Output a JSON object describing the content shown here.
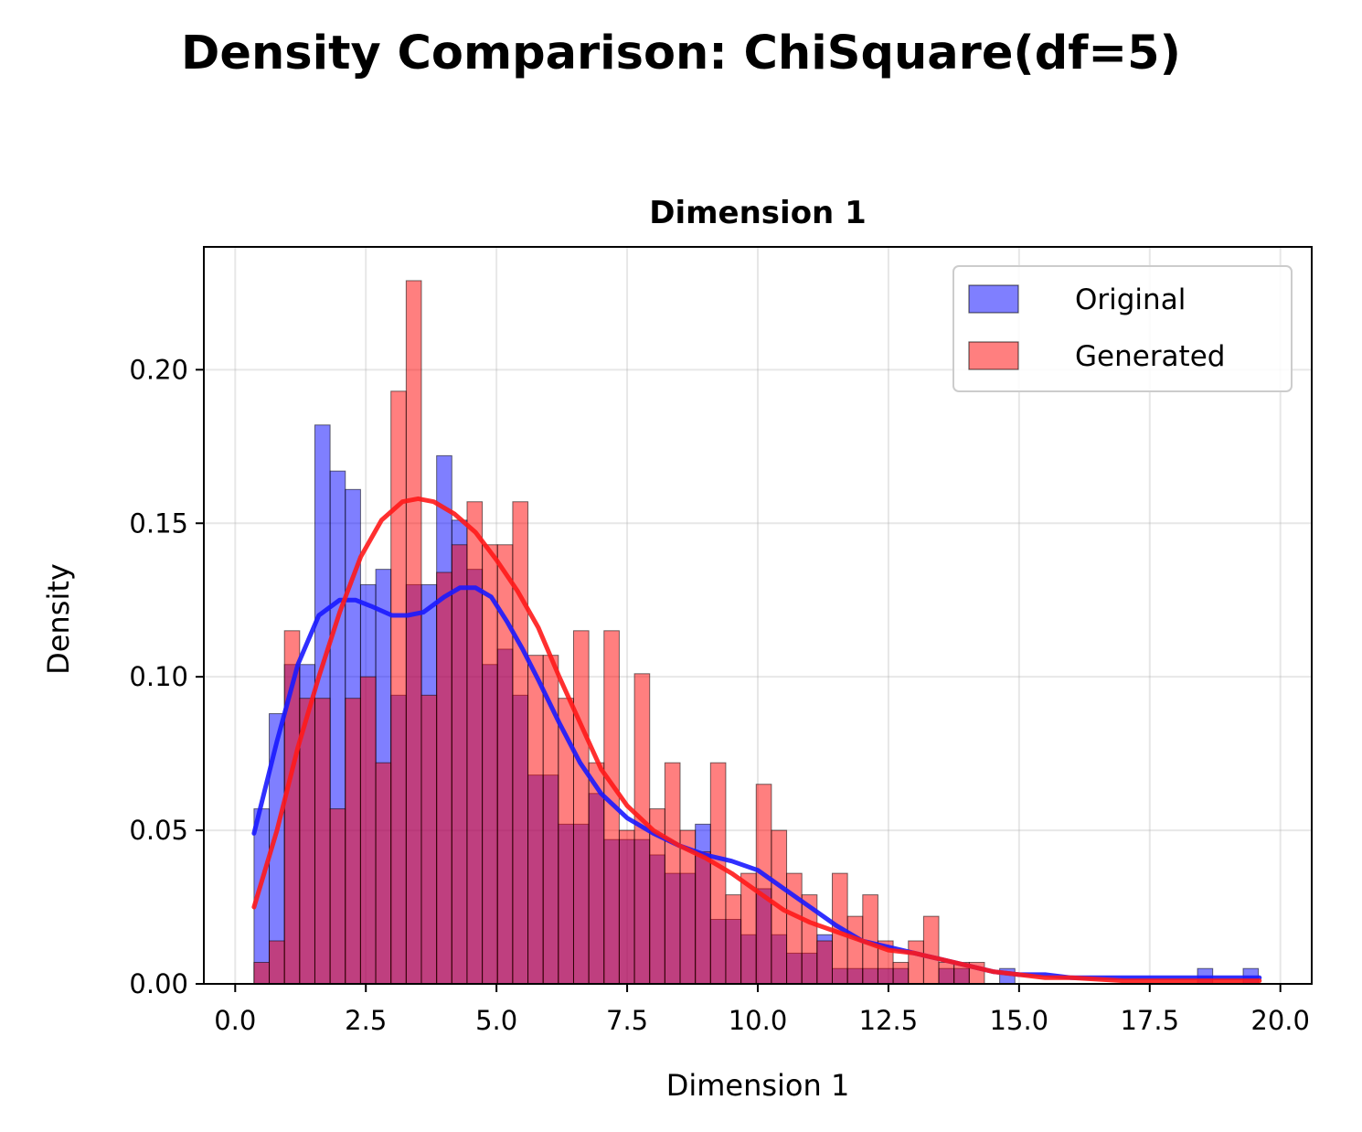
{
  "figure": {
    "title": "Density Comparison: ChiSquare(df=5)"
  },
  "chart_data": {
    "type": "bar",
    "title": "Dimension 1",
    "xlabel": "Dimension 1",
    "ylabel": "Density",
    "xlim": [
      -0.6,
      20.6
    ],
    "ylim": [
      0,
      0.24
    ],
    "xticks": [
      0.0,
      2.5,
      5.0,
      7.5,
      10.0,
      12.5,
      15.0,
      17.5,
      20.0
    ],
    "xtick_labels": [
      "0.0",
      "2.5",
      "5.0",
      "7.5",
      "10.0",
      "12.5",
      "15.0",
      "17.5",
      "20.0"
    ],
    "yticks": [
      0.0,
      0.05,
      0.1,
      0.15,
      0.2
    ],
    "ytick_labels": [
      "0.00",
      "0.05",
      "0.10",
      "0.15",
      "0.20"
    ],
    "grid": true,
    "legend_position": "top-right",
    "bins": {
      "start": 0.36,
      "width": 0.2912,
      "count": 66
    },
    "series": [
      {
        "name": "Original",
        "kind": "histogram",
        "color": "#0000ff",
        "opacity": 0.5,
        "values": [
          0.057,
          0.088,
          0.104,
          0.104,
          0.182,
          0.167,
          0.161,
          0.13,
          0.135,
          0.094,
          0.13,
          0.13,
          0.172,
          0.151,
          0.135,
          0.104,
          0.109,
          0.094,
          0.068,
          0.068,
          0.052,
          0.052,
          0.062,
          0.047,
          0.047,
          0.047,
          0.042,
          0.036,
          0.036,
          0.052,
          0.021,
          0.021,
          0.016,
          0.031,
          0.016,
          0.01,
          0.01,
          0.016,
          0.005,
          0.005,
          0.005,
          0.005,
          0.005,
          0.0,
          0.0,
          0.005,
          0.005,
          0.0,
          0.0,
          0.005,
          0.0,
          0.0,
          0.0,
          0.0,
          0.0,
          0.0,
          0.0,
          0.0,
          0.0,
          0.0,
          0.0,
          0.0,
          0.005,
          0.0,
          0.0,
          0.005
        ]
      },
      {
        "name": "Generated",
        "kind": "histogram",
        "color": "#ff0000",
        "opacity": 0.5,
        "values": [
          0.007,
          0.014,
          0.115,
          0.093,
          0.093,
          0.057,
          0.093,
          0.1,
          0.072,
          0.193,
          0.229,
          0.094,
          0.134,
          0.143,
          0.157,
          0.143,
          0.143,
          0.157,
          0.107,
          0.107,
          0.093,
          0.115,
          0.072,
          0.115,
          0.05,
          0.101,
          0.057,
          0.072,
          0.05,
          0.043,
          0.072,
          0.029,
          0.036,
          0.065,
          0.05,
          0.036,
          0.029,
          0.014,
          0.036,
          0.022,
          0.029,
          0.014,
          0.007,
          0.014,
          0.022,
          0.007,
          0.007,
          0.007,
          0.0,
          0.0,
          0.0,
          0.0,
          0.0,
          0.0,
          0.0,
          0.0,
          0.0,
          0.0,
          0.0,
          0.0,
          0.0,
          0.0,
          0.0,
          0.0,
          0.0,
          0.0
        ]
      },
      {
        "name": "Original KDE",
        "kind": "line",
        "color": "#1a1aff",
        "x": [
          0.36,
          0.8,
          1.2,
          1.6,
          2.0,
          2.3,
          2.6,
          3.0,
          3.3,
          3.6,
          4.0,
          4.3,
          4.6,
          4.9,
          5.2,
          5.5,
          5.8,
          6.2,
          6.6,
          7.0,
          7.5,
          8.0,
          8.5,
          9.0,
          9.5,
          10.0,
          10.5,
          11.0,
          11.5,
          12.0,
          12.5,
          13.0,
          13.5,
          14.0,
          14.5,
          15.0,
          15.5,
          16.0,
          17.0,
          18.0,
          19.6
        ],
        "y": [
          0.049,
          0.079,
          0.104,
          0.12,
          0.125,
          0.125,
          0.123,
          0.12,
          0.12,
          0.121,
          0.126,
          0.129,
          0.129,
          0.126,
          0.118,
          0.109,
          0.099,
          0.085,
          0.072,
          0.062,
          0.054,
          0.049,
          0.045,
          0.042,
          0.04,
          0.037,
          0.031,
          0.025,
          0.019,
          0.014,
          0.012,
          0.01,
          0.008,
          0.006,
          0.004,
          0.003,
          0.003,
          0.002,
          0.002,
          0.002,
          0.002
        ]
      },
      {
        "name": "Generated KDE",
        "kind": "line",
        "color": "#ff1a1a",
        "x": [
          0.36,
          0.8,
          1.2,
          1.6,
          2.0,
          2.4,
          2.8,
          3.2,
          3.5,
          3.8,
          4.2,
          4.6,
          5.0,
          5.4,
          5.8,
          6.2,
          6.6,
          7.0,
          7.5,
          8.0,
          8.5,
          9.0,
          9.5,
          10.0,
          10.5,
          11.0,
          11.5,
          12.0,
          12.5,
          13.0,
          13.5,
          14.0,
          14.5,
          15.0,
          15.5,
          16.0,
          17.0,
          18.0,
          19.6
        ],
        "y": [
          0.025,
          0.05,
          0.077,
          0.1,
          0.121,
          0.139,
          0.151,
          0.157,
          0.158,
          0.157,
          0.153,
          0.147,
          0.138,
          0.128,
          0.116,
          0.1,
          0.085,
          0.07,
          0.058,
          0.05,
          0.045,
          0.041,
          0.036,
          0.03,
          0.024,
          0.02,
          0.017,
          0.014,
          0.011,
          0.01,
          0.008,
          0.006,
          0.004,
          0.003,
          0.002,
          0.002,
          0.001,
          0.001,
          0.001
        ]
      }
    ],
    "legend": [
      {
        "label": "Original",
        "color": "#0000ff"
      },
      {
        "label": "Generated",
        "color": "#ff0000"
      }
    ]
  }
}
